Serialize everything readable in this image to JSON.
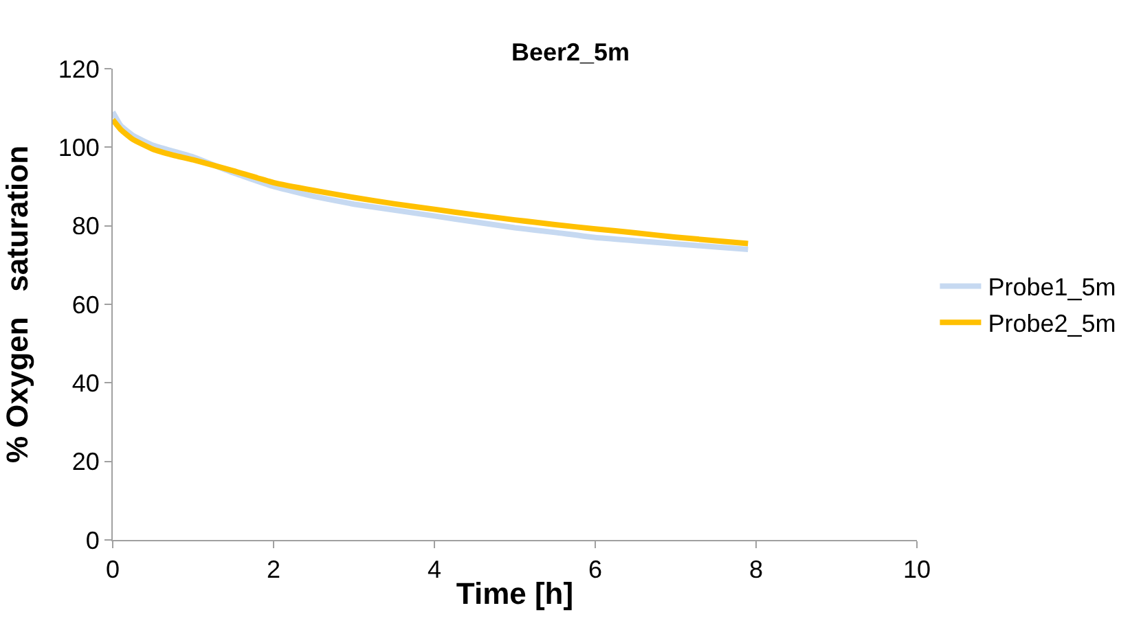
{
  "chart_data": {
    "type": "line",
    "title": "Beer2_5m",
    "xlabel": "Time [h]",
    "ylabel": "% Oxygen   saturation",
    "xlim": [
      0,
      10
    ],
    "xticks": [
      0,
      2,
      4,
      6,
      8,
      10
    ],
    "ylim": [
      0,
      120
    ],
    "yticks": [
      0,
      20,
      40,
      60,
      80,
      100,
      120
    ],
    "legend": "right",
    "marker": "none",
    "line_style": "solid",
    "series": [
      {
        "name": "Probe1_5m",
        "color": "#c6d9f1",
        "x": [
          0,
          0.1,
          0.25,
          0.5,
          0.75,
          1,
          1.5,
          2,
          2.5,
          3,
          3.5,
          4,
          4.5,
          5,
          5.5,
          6,
          6.5,
          7,
          7.5,
          7.9
        ],
        "values": [
          109,
          105.5,
          103,
          100.5,
          99,
          97.5,
          93.5,
          90,
          87.5,
          85.5,
          84,
          82.5,
          81,
          79.5,
          78.3,
          77,
          76.2,
          75.4,
          74.6,
          74
        ]
      },
      {
        "name": "Probe2_5m",
        "color": "#ffc000",
        "x": [
          0,
          0.1,
          0.25,
          0.5,
          0.75,
          1,
          1.5,
          2,
          2.5,
          3,
          3.5,
          4,
          4.5,
          5,
          5.5,
          6,
          6.5,
          7,
          7.5,
          7.9
        ],
        "values": [
          107,
          104.5,
          102,
          99.5,
          98,
          96.8,
          94,
          91,
          89,
          87.2,
          85.6,
          84.2,
          82.8,
          81.5,
          80.3,
          79.2,
          78.2,
          77.1,
          76.2,
          75.5
        ]
      }
    ]
  }
}
